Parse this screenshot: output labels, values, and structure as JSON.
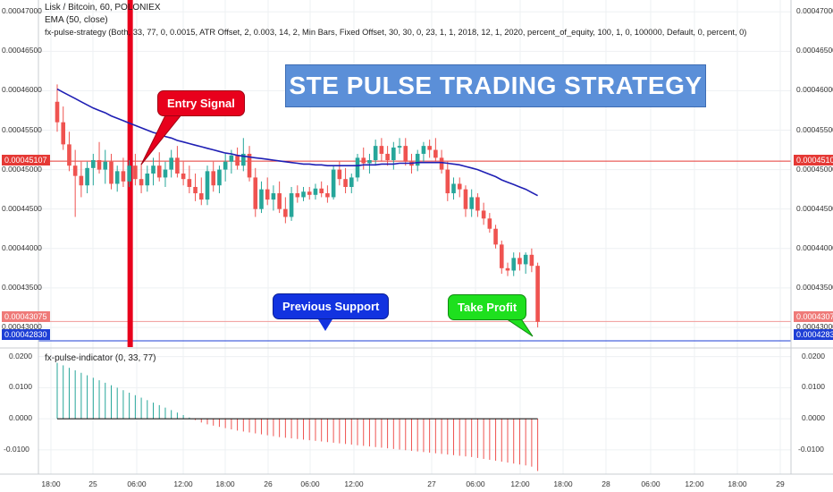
{
  "legend": {
    "symbol": "Lisk / Bitcoin, 60, POLONIEX",
    "ema": "EMA (50, close)",
    "strategy": "fx-pulse-strategy (Both, 33, 77, 0, 0.0015, ATR Offset, 2, 0.003, 14, 2, Min Bars, Fixed Offset, 30, 30, 0, 23, 1, 1, 2018, 12, 1, 2020, percent_of_equity, 100, 1, 0, 100000, Default, 0, percent, 0)",
    "indicator": "fx-pulse-indicator (0, 33, 77)"
  },
  "banner": "STE PULSE TRADING STRATEGY",
  "annotations": {
    "entry": "Entry Signal",
    "support": "Previous Support",
    "take_profit": "Take Profit"
  },
  "price_labels": {
    "entry_line": "0.00045107",
    "take_profit_line": "0.00043075",
    "support_line": "0.00042830"
  },
  "colors": {
    "up": "#26a69a",
    "down": "#ef5350",
    "ema": "#1f1fb4",
    "entry_line": "#e53935",
    "support_line": "#1e3fd6",
    "entry_box": "#e8001c",
    "support_box": "#1233e0",
    "tp_box": "#1ee01e",
    "banner": "#5b8fd8"
  },
  "chart_data": [
    {
      "type": "candlestick",
      "title": "Lisk / Bitcoin, 60, POLONIEX",
      "y_ticks": [
        "0.00047000",
        "0.00046500",
        "0.00046000",
        "0.00045500",
        "0.00045000",
        "0.00044500",
        "0.00044000",
        "0.00043500",
        "0.00043000"
      ],
      "x_ticks": [
        "18:00",
        "25",
        "06:00",
        "12:00",
        "18:00",
        "26",
        "06:00",
        "12:00",
        "27",
        "06:00",
        "12:00",
        "18:00",
        "28",
        "06:00",
        "12:00",
        "18:00",
        "29"
      ],
      "ylim": [
        0.0004275,
        0.0004715
      ],
      "candles": [
        [
          0.0004586,
          0.0004608,
          0.0004548,
          0.000456
        ],
        [
          0.000456,
          0.000458,
          0.0004525,
          0.0004532
        ],
        [
          0.0004532,
          0.0004548,
          0.0004498,
          0.0004505
        ],
        [
          0.0004505,
          0.0004525,
          0.000444,
          0.0004492
        ],
        [
          0.0004492,
          0.000451,
          0.0004465,
          0.000448
        ],
        [
          0.000448,
          0.000451,
          0.000447,
          0.0004502
        ],
        [
          0.0004502,
          0.000452,
          0.000448,
          0.0004512
        ],
        [
          0.0004512,
          0.0004535,
          0.0004495,
          0.00045
        ],
        [
          0.00045,
          0.0004525,
          0.0004482,
          0.000451
        ],
        [
          0.000451,
          0.000452,
          0.0004475,
          0.0004482
        ],
        [
          0.0004482,
          0.0004505,
          0.0004472,
          0.0004498
        ],
        [
          0.0004498,
          0.0004515,
          0.0004478,
          0.0004485
        ],
        [
          0.0004485,
          0.0004512,
          0.0004478,
          0.0004505
        ],
        [
          0.0004505,
          0.000452,
          0.000448,
          0.0004488
        ],
        [
          0.0004488,
          0.0004508,
          0.000447,
          0.000448
        ],
        [
          0.000448,
          0.0004505,
          0.0004472,
          0.0004495
        ],
        [
          0.0004495,
          0.0004515,
          0.000448,
          0.0004505
        ],
        [
          0.0004505,
          0.0004522,
          0.0004485,
          0.000449
        ],
        [
          0.000449,
          0.000451,
          0.0004478,
          0.00045
        ],
        [
          0.00045,
          0.0004525,
          0.000449,
          0.0004515
        ],
        [
          0.0004515,
          0.000453,
          0.000449,
          0.0004495
        ],
        [
          0.0004495,
          0.000451,
          0.000448,
          0.0004488
        ],
        [
          0.0004488,
          0.0004505,
          0.000447,
          0.0004478
        ],
        [
          0.0004478,
          0.0004495,
          0.000446,
          0.000447
        ],
        [
          0.000447,
          0.000449,
          0.0004455,
          0.0004462
        ],
        [
          0.0004462,
          0.0004505,
          0.0004455,
          0.0004498
        ],
        [
          0.0004498,
          0.000451,
          0.0004472,
          0.000448
        ],
        [
          0.000448,
          0.0004505,
          0.000447,
          0.00045
        ],
        [
          0.00045,
          0.000452,
          0.0004485,
          0.000451
        ],
        [
          0.000451,
          0.0004525,
          0.0004495,
          0.0004518
        ],
        [
          0.0004518,
          0.0004528,
          0.00045,
          0.0004505
        ],
        [
          0.0004505,
          0.000454,
          0.0004498,
          0.000452
        ],
        [
          0.000452,
          0.000453,
          0.0004485,
          0.000449
        ],
        [
          0.000449,
          0.0004502,
          0.000444,
          0.000445
        ],
        [
          0.000445,
          0.0004485,
          0.0004445,
          0.0004475
        ],
        [
          0.0004475,
          0.000449,
          0.0004455,
          0.0004462
        ],
        [
          0.0004462,
          0.000448,
          0.0004448,
          0.000447
        ],
        [
          0.000447,
          0.0004485,
          0.0004445,
          0.000445
        ],
        [
          0.000445,
          0.0004465,
          0.0004432,
          0.000444
        ],
        [
          0.000444,
          0.0004478,
          0.0004435,
          0.000447
        ],
        [
          0.000447,
          0.000448,
          0.0004458,
          0.0004465
        ],
        [
          0.0004465,
          0.0004478,
          0.000446,
          0.0004472
        ],
        [
          0.0004472,
          0.0004478,
          0.0004462,
          0.0004468
        ],
        [
          0.0004468,
          0.0004482,
          0.0004462,
          0.0004476
        ],
        [
          0.0004476,
          0.0004485,
          0.0004465,
          0.000447
        ],
        [
          0.000447,
          0.000448,
          0.0004458,
          0.0004465
        ],
        [
          0.0004465,
          0.0004505,
          0.0004462,
          0.00045
        ],
        [
          0.00045,
          0.000451,
          0.000448,
          0.0004488
        ],
        [
          0.0004488,
          0.0004502,
          0.000447,
          0.0004478
        ],
        [
          0.0004478,
          0.0004495,
          0.000447,
          0.000449
        ],
        [
          0.000449,
          0.000452,
          0.0004485,
          0.0004515
        ],
        [
          0.0004515,
          0.0004528,
          0.00045,
          0.0004508
        ],
        [
          0.0004508,
          0.000452,
          0.0004495,
          0.0004512
        ],
        [
          0.0004512,
          0.0004538,
          0.0004505,
          0.000453
        ],
        [
          0.000453,
          0.000454,
          0.000451,
          0.000452
        ],
        [
          0.000452,
          0.000453,
          0.0004505,
          0.0004512
        ],
        [
          0.0004512,
          0.0004535,
          0.00045,
          0.0004528
        ],
        [
          0.0004528,
          0.000454,
          0.000452,
          0.000453
        ],
        [
          0.000453,
          0.000454,
          0.0004505,
          0.000451
        ],
        [
          0.000451,
          0.000452,
          0.0004495,
          0.0004505
        ],
        [
          0.0004505,
          0.0004525,
          0.0004498,
          0.000452
        ],
        [
          0.000452,
          0.0004535,
          0.000451,
          0.000453
        ],
        [
          0.000453,
          0.0004538,
          0.0004515,
          0.0004525
        ],
        [
          0.0004525,
          0.000454,
          0.000451,
          0.0004515
        ],
        [
          0.0004515,
          0.0004525,
          0.0004495,
          0.00045
        ],
        [
          0.00045,
          0.000451,
          0.000446,
          0.000447
        ],
        [
          0.000447,
          0.000449,
          0.0004462,
          0.0004482
        ],
        [
          0.0004482,
          0.000449,
          0.0004465,
          0.0004475
        ],
        [
          0.0004475,
          0.000448,
          0.000444,
          0.000445
        ],
        [
          0.000445,
          0.0004475,
          0.000444,
          0.0004465
        ],
        [
          0.0004465,
          0.000447,
          0.000444,
          0.0004448
        ],
        [
          0.0004448,
          0.0004458,
          0.000443,
          0.0004438
        ],
        [
          0.0004438,
          0.0004445,
          0.000442,
          0.0004425
        ],
        [
          0.0004425,
          0.000443,
          0.00044,
          0.0004405
        ],
        [
          0.0004405,
          0.000441,
          0.0004368,
          0.0004375
        ],
        [
          0.0004375,
          0.0004382,
          0.0004365,
          0.0004372
        ],
        [
          0.0004372,
          0.0004395,
          0.0004365,
          0.0004388
        ],
        [
          0.0004388,
          0.0004395,
          0.0004372,
          0.000438
        ],
        [
          0.000438,
          0.0004395,
          0.0004368,
          0.0004392
        ],
        [
          0.0004392,
          0.00044,
          0.000437,
          0.0004378
        ],
        [
          0.0004378,
          0.0004382,
          0.00043,
          0.0004307
        ]
      ],
      "ema": [
        0.0004602,
        0.0004598,
        0.0004594,
        0.000459,
        0.0004586,
        0.0004582,
        0.0004578,
        0.0004575,
        0.0004572,
        0.0004568,
        0.0004565,
        0.0004562,
        0.0004559,
        0.0004556,
        0.0004553,
        0.000455,
        0.0004547,
        0.0004545,
        0.0004542,
        0.000454,
        0.0004537,
        0.0004535,
        0.0004533,
        0.0004531,
        0.0004529,
        0.0004527,
        0.0004525,
        0.0004523,
        0.0004521,
        0.000452,
        0.0004518,
        0.0004517,
        0.0004516,
        0.0004515,
        0.0004514,
        0.0004513,
        0.0004512,
        0.0004511,
        0.000451,
        0.0004509,
        0.0004508,
        0.0004507,
        0.0004507,
        0.0004506,
        0.0004506,
        0.0004505,
        0.0004505,
        0.0004505,
        0.0004505,
        0.0004505,
        0.0004505,
        0.0004506,
        0.0004506,
        0.0004506,
        0.0004507,
        0.0004507,
        0.0004507,
        0.0004508,
        0.0004508,
        0.0004508,
        0.0004509,
        0.0004509,
        0.0004509,
        0.0004509,
        0.0004509,
        0.0004508,
        0.0004507,
        0.0004506,
        0.0004504,
        0.0004502,
        0.00045,
        0.0004497,
        0.0004494,
        0.0004491,
        0.0004487,
        0.0004484,
        0.0004481,
        0.0004478,
        0.0004475,
        0.0004471,
        0.0004467
      ],
      "entry_index": 12,
      "hlines": [
        0.00045107,
        0.00043075,
        0.0004283
      ]
    },
    {
      "type": "bar",
      "title": "fx-pulse-indicator (0, 33, 77)",
      "y_ticks": [
        "0.0200",
        "0.0100",
        "0.0000",
        "-0.0100"
      ],
      "ylim": [
        -0.0178,
        0.0225
      ],
      "values": [
        0.018,
        0.0172,
        0.0164,
        0.0156,
        0.0148,
        0.014,
        0.0132,
        0.0124,
        0.0116,
        0.0108,
        0.01,
        0.0092,
        0.0084,
        0.0076,
        0.0068,
        0.006,
        0.0052,
        0.0044,
        0.0036,
        0.0028,
        0.002,
        0.0012,
        0.0004,
        -0.0004,
        -0.0012,
        -0.0018,
        -0.0022,
        -0.0026,
        -0.003,
        -0.0034,
        -0.0038,
        -0.0041,
        -0.0044,
        -0.0047,
        -0.005,
        -0.0053,
        -0.0056,
        -0.0059,
        -0.0061,
        -0.0063,
        -0.0065,
        -0.0067,
        -0.0069,
        -0.0071,
        -0.0073,
        -0.0075,
        -0.0077,
        -0.0079,
        -0.0081,
        -0.0083,
        -0.0085,
        -0.0087,
        -0.0089,
        -0.0091,
        -0.0093,
        -0.0095,
        -0.0097,
        -0.0099,
        -0.0101,
        -0.0103,
        -0.0105,
        -0.0107,
        -0.0109,
        -0.0111,
        -0.0113,
        -0.0115,
        -0.0117,
        -0.0119,
        -0.0121,
        -0.0123,
        -0.0126,
        -0.0129,
        -0.0132,
        -0.0135,
        -0.0138,
        -0.0141,
        -0.0144,
        -0.0147,
        -0.015,
        -0.0154,
        -0.0168
      ]
    }
  ]
}
